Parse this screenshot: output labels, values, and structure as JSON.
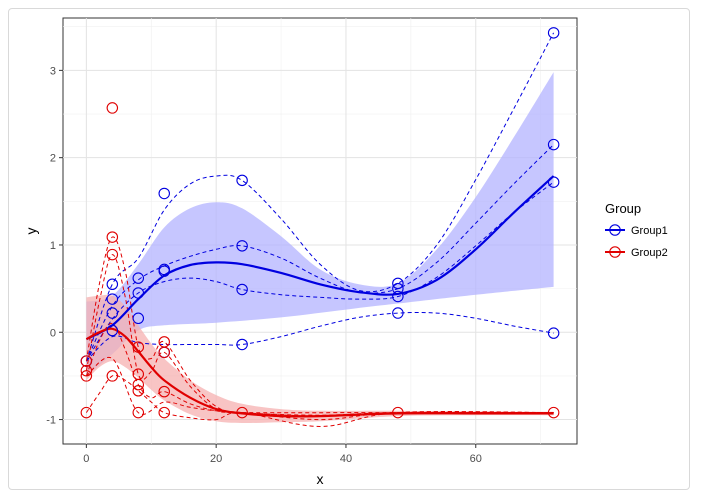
{
  "chart_data": {
    "type": "scatter",
    "title": "",
    "xlabel": "x",
    "ylabel": "y",
    "xlim": [
      -3.6,
      75.6
    ],
    "ylim": [
      -1.28,
      3.6
    ],
    "x_ticks": [
      0,
      20,
      40,
      60
    ],
    "y_ticks": [
      -1,
      0,
      1,
      2,
      3
    ],
    "grid": true,
    "legend": {
      "title": "Group",
      "position": "right",
      "entries": [
        "Group1",
        "Group2"
      ]
    },
    "colors": {
      "Group1": "#0000e0",
      "Group2": "#e00000",
      "band1": "#b3b3ff",
      "band2": "#f5b0b0"
    },
    "series": [
      {
        "name": "Group1",
        "points": [
          [
            0,
            -0.33
          ],
          [
            4,
            0.55
          ],
          [
            4,
            0.38
          ],
          [
            4,
            0.22
          ],
          [
            4,
            0.02
          ],
          [
            8,
            0.62
          ],
          [
            8,
            0.45
          ],
          [
            8,
            0.16
          ],
          [
            12,
            1.59
          ],
          [
            12,
            0.72
          ],
          [
            12,
            0.7
          ],
          [
            12,
            -0.23
          ],
          [
            24,
            1.74
          ],
          [
            24,
            0.99
          ],
          [
            24,
            0.49
          ],
          [
            24,
            -0.14
          ],
          [
            48,
            0.56
          ],
          [
            48,
            0.5
          ],
          [
            48,
            0.41
          ],
          [
            48,
            0.22
          ],
          [
            72,
            3.43
          ],
          [
            72,
            2.15
          ],
          [
            72,
            1.72
          ],
          [
            72,
            -0.01
          ]
        ],
        "fit": [
          [
            0,
            -0.08
          ],
          [
            4,
            0.08
          ],
          [
            8,
            0.38
          ],
          [
            12,
            0.65
          ],
          [
            16,
            0.77
          ],
          [
            20,
            0.8
          ],
          [
            24,
            0.78
          ],
          [
            30,
            0.68
          ],
          [
            36,
            0.55
          ],
          [
            42,
            0.46
          ],
          [
            48,
            0.44
          ],
          [
            54,
            0.6
          ],
          [
            60,
            0.95
          ],
          [
            66,
            1.38
          ],
          [
            72,
            1.79
          ]
        ],
        "band_upper": [
          [
            0,
            0.35
          ],
          [
            4,
            0.42
          ],
          [
            8,
            0.78
          ],
          [
            12,
            1.2
          ],
          [
            16,
            1.42
          ],
          [
            20,
            1.49
          ],
          [
            24,
            1.42
          ],
          [
            30,
            1.1
          ],
          [
            36,
            0.72
          ],
          [
            42,
            0.55
          ],
          [
            48,
            0.56
          ],
          [
            54,
            0.95
          ],
          [
            60,
            1.55
          ],
          [
            66,
            2.25
          ],
          [
            72,
            2.98
          ]
        ],
        "band_lower": [
          [
            0,
            -0.5
          ],
          [
            4,
            -0.25
          ],
          [
            8,
            0.02
          ],
          [
            12,
            0.08
          ],
          [
            20,
            0.11
          ],
          [
            30,
            0.17
          ],
          [
            40,
            0.26
          ],
          [
            48,
            0.33
          ],
          [
            60,
            0.43
          ],
          [
            72,
            0.52
          ]
        ],
        "individual_curves": [
          [
            [
              0,
              -0.33
            ],
            [
              4,
              0.55
            ],
            [
              8,
              0.85
            ],
            [
              12,
              1.4
            ],
            [
              16,
              1.7
            ],
            [
              20,
              1.79
            ],
            [
              24,
              1.74
            ],
            [
              30,
              1.3
            ],
            [
              36,
              0.78
            ],
            [
              42,
              0.48
            ],
            [
              48,
              0.56
            ],
            [
              54,
              1.0
            ],
            [
              60,
              1.75
            ],
            [
              66,
              2.58
            ],
            [
              72,
              3.43
            ]
          ],
          [
            [
              0,
              -0.33
            ],
            [
              4,
              0.3
            ],
            [
              8,
              0.6
            ],
            [
              12,
              0.76
            ],
            [
              16,
              0.87
            ],
            [
              20,
              0.95
            ],
            [
              24,
              0.99
            ],
            [
              30,
              0.85
            ],
            [
              36,
              0.62
            ],
            [
              42,
              0.46
            ],
            [
              48,
              0.5
            ],
            [
              54,
              0.8
            ],
            [
              60,
              1.25
            ],
            [
              66,
              1.71
            ],
            [
              72,
              2.15
            ]
          ],
          [
            [
              0,
              -0.33
            ],
            [
              4,
              0.15
            ],
            [
              8,
              0.45
            ],
            [
              12,
              0.58
            ],
            [
              16,
              0.62
            ],
            [
              20,
              0.58
            ],
            [
              24,
              0.49
            ],
            [
              30,
              0.43
            ],
            [
              36,
              0.4
            ],
            [
              42,
              0.38
            ],
            [
              48,
              0.41
            ],
            [
              54,
              0.63
            ],
            [
              60,
              0.99
            ],
            [
              66,
              1.38
            ],
            [
              72,
              1.72
            ]
          ],
          [
            [
              0,
              -0.33
            ],
            [
              4,
              -0.05
            ],
            [
              8,
              -0.12
            ],
            [
              12,
              -0.14
            ],
            [
              16,
              -0.14
            ],
            [
              20,
              -0.14
            ],
            [
              24,
              -0.14
            ],
            [
              30,
              -0.05
            ],
            [
              36,
              0.07
            ],
            [
              42,
              0.17
            ],
            [
              48,
              0.22
            ],
            [
              54,
              0.22
            ],
            [
              60,
              0.16
            ],
            [
              66,
              0.07
            ],
            [
              72,
              -0.01
            ]
          ]
        ]
      },
      {
        "name": "Group2",
        "points": [
          [
            0,
            -0.33
          ],
          [
            0,
            -0.44
          ],
          [
            0,
            -0.5
          ],
          [
            0,
            -0.92
          ],
          [
            4,
            2.57
          ],
          [
            4,
            1.09
          ],
          [
            4,
            0.89
          ],
          [
            4,
            -0.5
          ],
          [
            8,
            -0.17
          ],
          [
            8,
            -0.48
          ],
          [
            8,
            -0.6
          ],
          [
            8,
            -0.67
          ],
          [
            8,
            -0.92
          ],
          [
            12,
            -0.11
          ],
          [
            12,
            -0.23
          ],
          [
            12,
            -0.68
          ],
          [
            12,
            -0.92
          ],
          [
            24,
            -0.92
          ],
          [
            48,
            -0.92
          ],
          [
            72,
            -0.92
          ]
        ],
        "fit": [
          [
            0,
            -0.08
          ],
          [
            2,
            0.0
          ],
          [
            4,
            0.04
          ],
          [
            6,
            -0.05
          ],
          [
            8,
            -0.22
          ],
          [
            10,
            -0.4
          ],
          [
            12,
            -0.55
          ],
          [
            16,
            -0.75
          ],
          [
            20,
            -0.88
          ],
          [
            24,
            -0.93
          ],
          [
            30,
            -0.96
          ],
          [
            36,
            -0.96
          ],
          [
            48,
            -0.93
          ],
          [
            60,
            -0.93
          ],
          [
            72,
            -0.93
          ]
        ],
        "band_upper": [
          [
            0,
            0.4
          ],
          [
            2,
            0.42
          ],
          [
            4,
            0.42
          ],
          [
            6,
            0.3
          ],
          [
            8,
            0.08
          ],
          [
            10,
            -0.13
          ],
          [
            12,
            -0.3
          ],
          [
            16,
            -0.55
          ],
          [
            20,
            -0.72
          ],
          [
            24,
            -0.82
          ],
          [
            30,
            -0.88
          ],
          [
            36,
            -0.9
          ],
          [
            48,
            -0.9
          ],
          [
            60,
            -0.91
          ],
          [
            72,
            -0.91
          ]
        ],
        "band_lower": [
          [
            0,
            -0.55
          ],
          [
            2,
            -0.4
          ],
          [
            4,
            -0.33
          ],
          [
            6,
            -0.4
          ],
          [
            8,
            -0.52
          ],
          [
            10,
            -0.66
          ],
          [
            12,
            -0.78
          ],
          [
            16,
            -0.94
          ],
          [
            20,
            -1.02
          ],
          [
            24,
            -1.04
          ],
          [
            30,
            -1.03
          ],
          [
            36,
            -1.02
          ],
          [
            48,
            -0.96
          ],
          [
            60,
            -0.95
          ],
          [
            72,
            -0.95
          ]
        ],
        "individual_curves": [
          [
            [
              0,
              -0.33
            ],
            [
              2,
              0.55
            ],
            [
              4,
              1.09
            ],
            [
              6,
              0.7
            ],
            [
              8,
              -0.17
            ],
            [
              10,
              -0.3
            ],
            [
              12,
              -0.11
            ],
            [
              16,
              -0.55
            ],
            [
              20,
              -0.85
            ],
            [
              24,
              -0.92
            ],
            [
              36,
              -0.95
            ],
            [
              48,
              -0.92
            ],
            [
              72,
              -0.92
            ]
          ],
          [
            [
              0,
              -0.44
            ],
            [
              2,
              0.35
            ],
            [
              4,
              0.89
            ],
            [
              6,
              0.4
            ],
            [
              8,
              -0.48
            ],
            [
              10,
              -0.45
            ],
            [
              12,
              -0.23
            ],
            [
              16,
              -0.62
            ],
            [
              20,
              -0.88
            ],
            [
              24,
              -0.92
            ],
            [
              36,
              -0.96
            ],
            [
              48,
              -0.92
            ],
            [
              72,
              -0.92
            ]
          ],
          [
            [
              0,
              -0.5
            ],
            [
              2,
              -0.1
            ],
            [
              4,
              0.1
            ],
            [
              6,
              -0.2
            ],
            [
              8,
              -0.6
            ],
            [
              10,
              -0.75
            ],
            [
              12,
              -0.68
            ],
            [
              16,
              -0.82
            ],
            [
              20,
              -0.9
            ],
            [
              24,
              -0.92
            ],
            [
              36,
              -1.0
            ],
            [
              48,
              -0.92
            ],
            [
              72,
              -0.92
            ]
          ],
          [
            [
              0,
              -0.92
            ],
            [
              2,
              -0.7
            ],
            [
              4,
              -0.5
            ],
            [
              6,
              -0.55
            ],
            [
              8,
              -0.67
            ],
            [
              10,
              -0.8
            ],
            [
              12,
              -0.92
            ],
            [
              16,
              -0.98
            ],
            [
              20,
              -1.0
            ],
            [
              24,
              -0.92
            ],
            [
              36,
              -1.08
            ],
            [
              48,
              -0.92
            ],
            [
              72,
              -0.92
            ]
          ],
          [
            [
              0,
              -0.5
            ],
            [
              4,
              -0.3
            ],
            [
              8,
              -0.92
            ],
            [
              12,
              -0.8
            ],
            [
              16,
              -0.86
            ],
            [
              20,
              -0.9
            ],
            [
              24,
              -0.92
            ],
            [
              48,
              -0.92
            ],
            [
              72,
              -0.92
            ]
          ]
        ]
      }
    ]
  }
}
